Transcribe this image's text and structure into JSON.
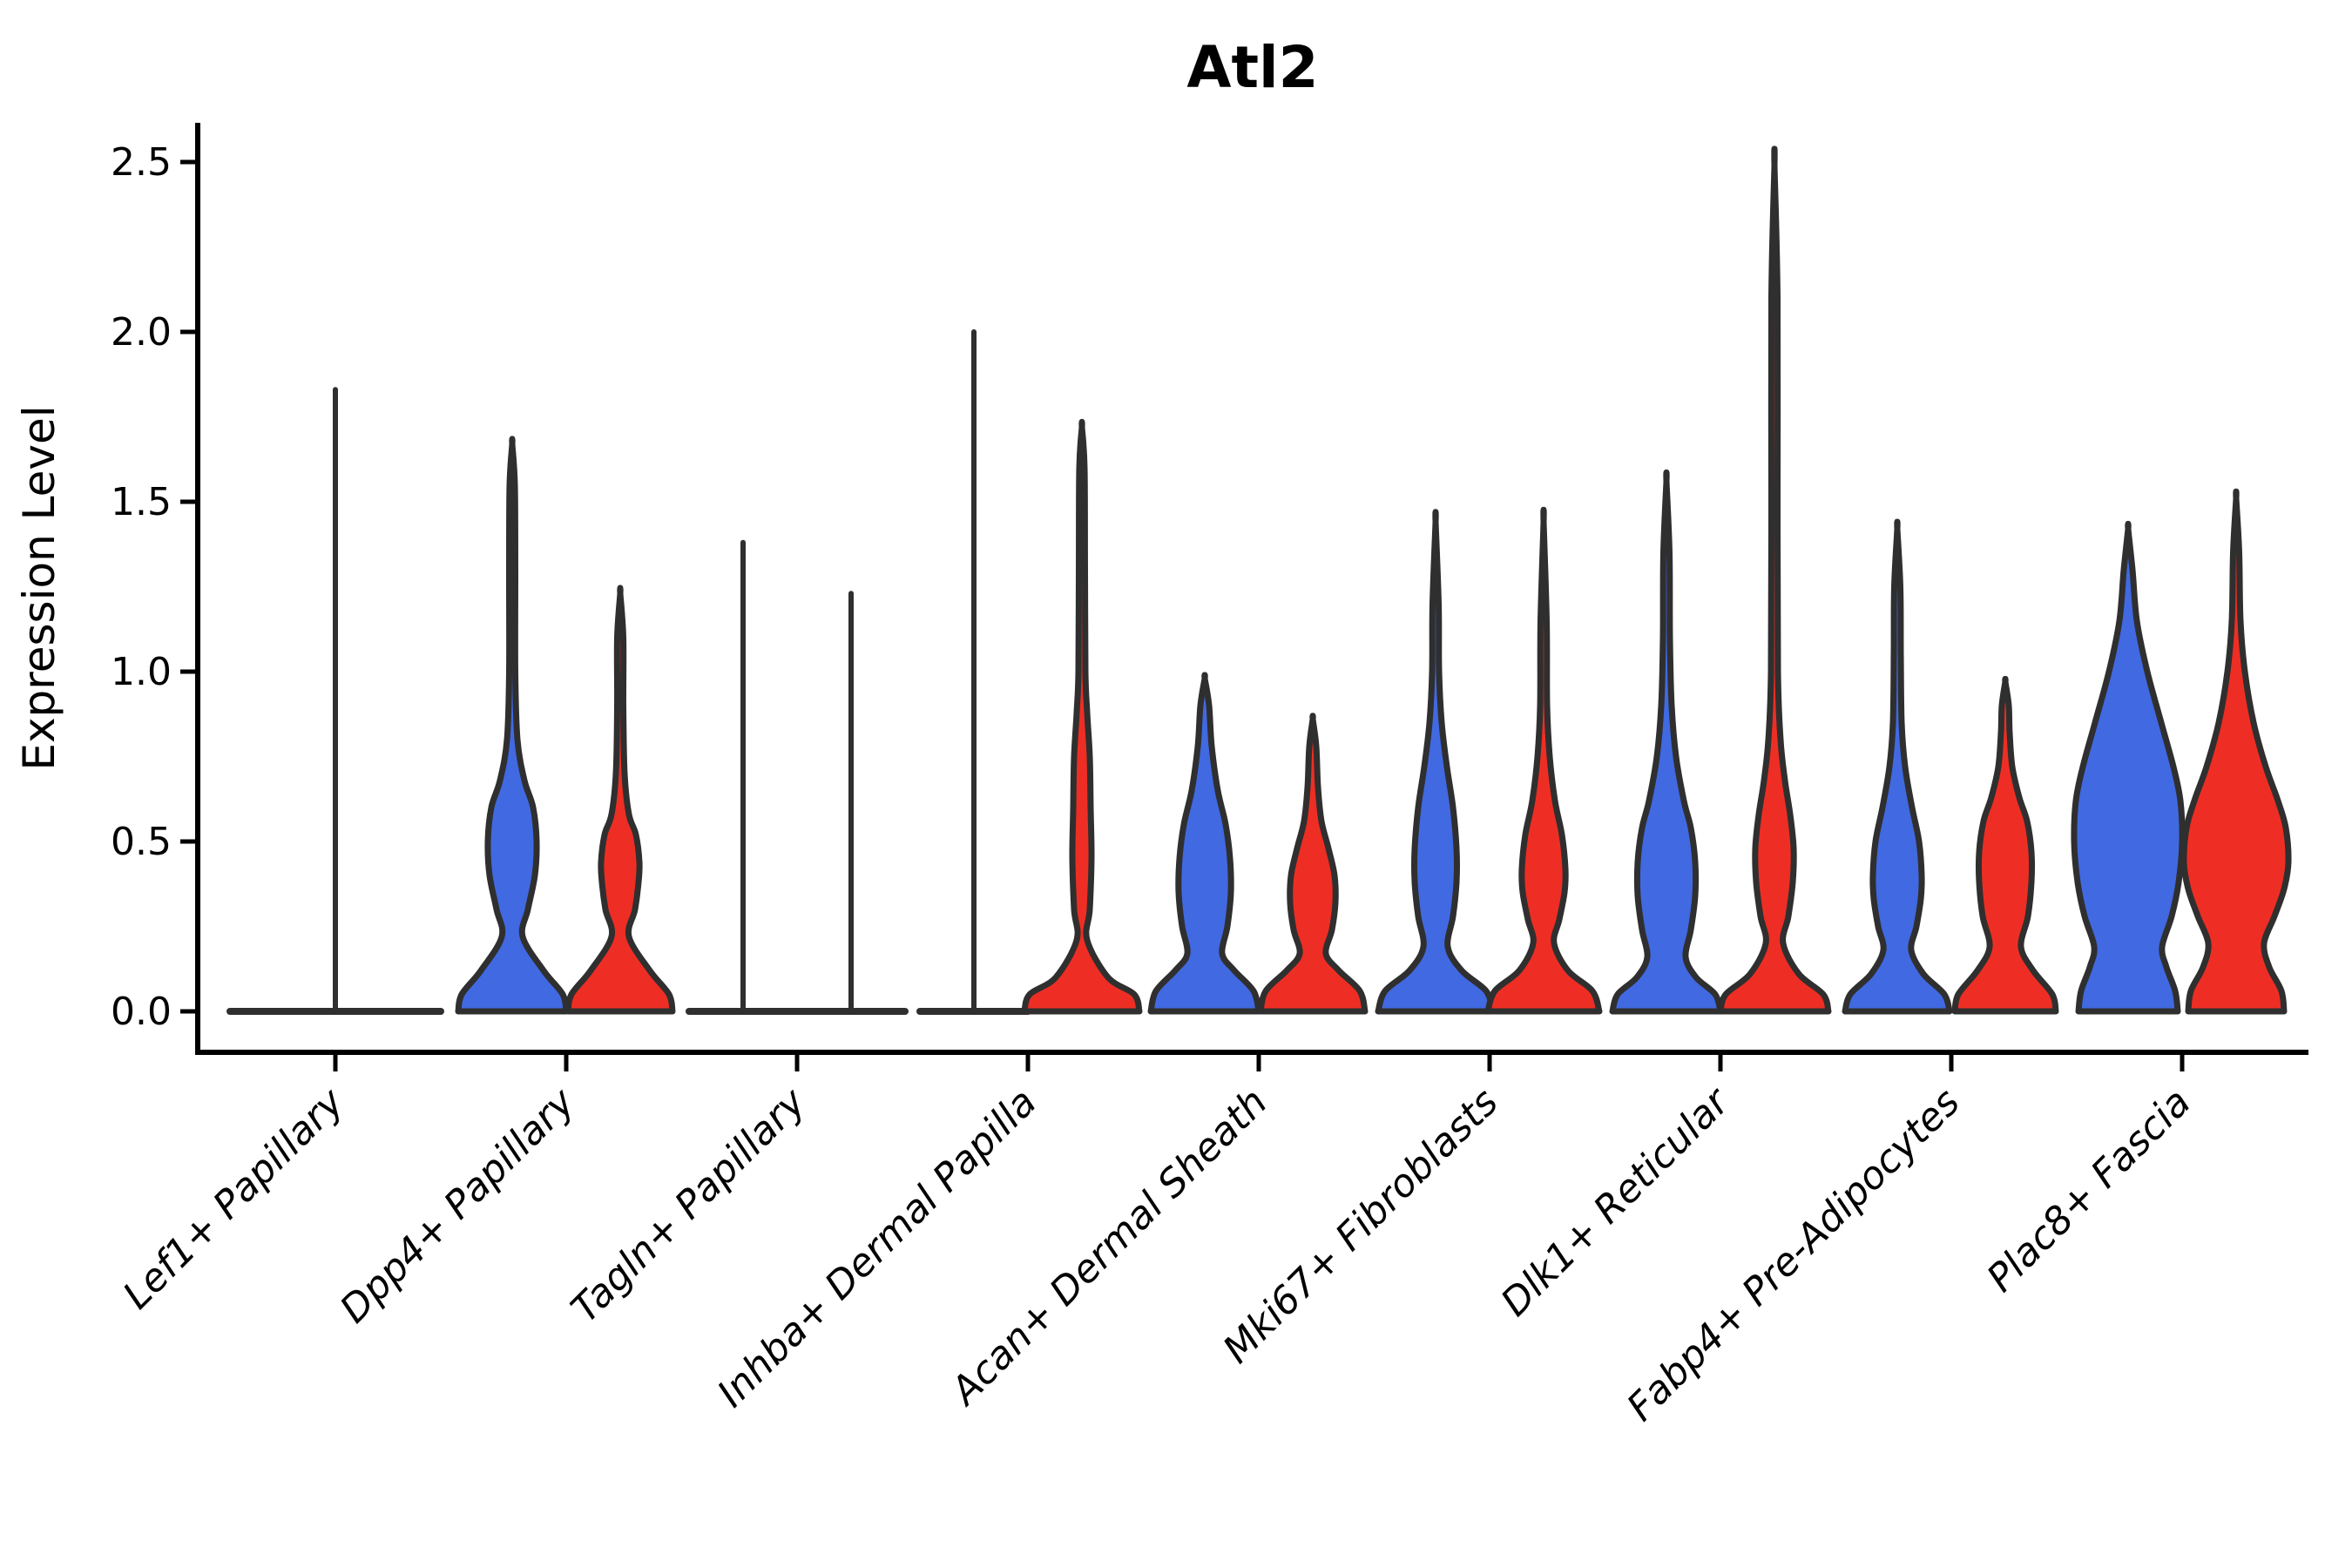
{
  "title": "Atl2",
  "y_axis": {
    "label": "Expression Level",
    "tick_labels": [
      "0.0",
      "0.5",
      "1.0",
      "1.5",
      "2.0",
      "2.5"
    ],
    "tick_values": [
      0.0,
      0.5,
      1.0,
      1.5,
      2.0,
      2.5
    ]
  },
  "colors": {
    "blue": "#4169e1",
    "red": "#ee2e24",
    "outline": "#2f2f2f",
    "axis": "#000000"
  },
  "chart_data": {
    "type": "violin",
    "title": "Atl2",
    "ylabel": "Expression Level",
    "ylim": [
      -0.12,
      2.62
    ],
    "yticks": [
      0.0,
      0.5,
      1.0,
      1.5,
      2.0,
      2.5
    ],
    "grid": false,
    "legend": "none",
    "categories": [
      "Lef1+ Papillary",
      "Dpp4+ Papillary",
      "Tagln+ Papillary",
      "Inhba+ Dermal Papilla",
      "Acan+ Dermal Sheath",
      "Mki67+ Fibroblasts",
      "Dlk1+ Reticular",
      "Fabp4+ Pre-Adipocytes",
      "Plac8+ Fascia"
    ],
    "groups": [
      {
        "category": "Lef1+ Papillary",
        "violins": [
          {
            "color": "blue",
            "flat": true,
            "full_width": true,
            "max": 1.83,
            "spike": 1.83,
            "profile": [
              [
                0,
                121
              ]
            ]
          }
        ]
      },
      {
        "category": "Dpp4+ Papillary",
        "violins": [
          {
            "color": "blue",
            "max": 1.67,
            "profile": [
              [
                0,
                62
              ],
              [
                0.05,
                58
              ],
              [
                0.12,
                36
              ],
              [
                0.22,
                12
              ],
              [
                0.3,
                18
              ],
              [
                0.4,
                26
              ],
              [
                0.5,
                28
              ],
              [
                0.6,
                24
              ],
              [
                0.68,
                14
              ],
              [
                0.8,
                6
              ],
              [
                1.0,
                3.5
              ],
              [
                1.3,
                3.5
              ],
              [
                1.55,
                3
              ],
              [
                1.67,
                0
              ]
            ]
          },
          {
            "color": "red",
            "max": 1.23,
            "profile": [
              [
                0,
                60
              ],
              [
                0.05,
                56
              ],
              [
                0.12,
                34
              ],
              [
                0.22,
                10
              ],
              [
                0.3,
                17
              ],
              [
                0.38,
                21
              ],
              [
                0.44,
                22
              ],
              [
                0.52,
                18
              ],
              [
                0.58,
                10
              ],
              [
                0.7,
                5
              ],
              [
                0.9,
                3.5
              ],
              [
                1.1,
                3.5
              ],
              [
                1.23,
                0
              ]
            ]
          }
        ]
      },
      {
        "category": "Tagln+ Papillary",
        "violins": [
          {
            "color": "blue",
            "flat": true,
            "max": 1.38,
            "spike": 1.38,
            "profile": [
              [
                0,
                62
              ]
            ]
          },
          {
            "color": "red",
            "flat": true,
            "max": 1.23,
            "spike": 1.23,
            "profile": [
              [
                0,
                62
              ]
            ]
          }
        ]
      },
      {
        "category": "Inhba+ Dermal Papilla",
        "violins": [
          {
            "color": "blue",
            "flat": true,
            "max": 2.0,
            "spike": 2.0,
            "profile": [
              [
                0,
                62
              ]
            ]
          },
          {
            "color": "red",
            "max": 1.72,
            "profile": [
              [
                0,
                66
              ],
              [
                0.05,
                60
              ],
              [
                0.1,
                30
              ],
              [
                0.21,
                6
              ],
              [
                0.3,
                9
              ],
              [
                0.45,
                11
              ],
              [
                0.6,
                10
              ],
              [
                0.75,
                9
              ],
              [
                0.88,
                6
              ],
              [
                1.0,
                4
              ],
              [
                1.3,
                3.5
              ],
              [
                1.6,
                3
              ],
              [
                1.72,
                0
              ]
            ]
          }
        ]
      },
      {
        "category": "Acan+ Dermal Sheath",
        "violins": [
          {
            "color": "blue",
            "max": 0.98,
            "profile": [
              [
                0,
                62
              ],
              [
                0.06,
                56
              ],
              [
                0.12,
                34
              ],
              [
                0.17,
                20
              ],
              [
                0.25,
                26
              ],
              [
                0.35,
                30
              ],
              [
                0.45,
                29
              ],
              [
                0.55,
                24
              ],
              [
                0.65,
                15
              ],
              [
                0.78,
                8
              ],
              [
                0.9,
                5
              ],
              [
                0.98,
                0
              ]
            ]
          },
          {
            "color": "red",
            "max": 0.86,
            "profile": [
              [
                0,
                60
              ],
              [
                0.06,
                54
              ],
              [
                0.12,
                30
              ],
              [
                0.17,
                15
              ],
              [
                0.24,
                22
              ],
              [
                0.32,
                26
              ],
              [
                0.4,
                25
              ],
              [
                0.48,
                18
              ],
              [
                0.56,
                10
              ],
              [
                0.66,
                6
              ],
              [
                0.78,
                4
              ],
              [
                0.86,
                0
              ]
            ]
          }
        ]
      },
      {
        "category": "Mki67+ Fibroblasts",
        "violins": [
          {
            "color": "blue",
            "max": 1.44,
            "profile": [
              [
                0,
                66
              ],
              [
                0.06,
                58
              ],
              [
                0.12,
                30
              ],
              [
                0.19,
                14
              ],
              [
                0.28,
                20
              ],
              [
                0.38,
                24
              ],
              [
                0.48,
                24
              ],
              [
                0.6,
                20
              ],
              [
                0.72,
                13
              ],
              [
                0.85,
                7
              ],
              [
                1.0,
                4
              ],
              [
                1.2,
                3.5
              ],
              [
                1.44,
                0
              ]
            ]
          },
          {
            "color": "red",
            "max": 1.44,
            "profile": [
              [
                0,
                64
              ],
              [
                0.06,
                56
              ],
              [
                0.12,
                28
              ],
              [
                0.2,
                12
              ],
              [
                0.27,
                18
              ],
              [
                0.35,
                24
              ],
              [
                0.42,
                25
              ],
              [
                0.52,
                21
              ],
              [
                0.62,
                13
              ],
              [
                0.75,
                7
              ],
              [
                0.9,
                4
              ],
              [
                1.15,
                3.5
              ],
              [
                1.44,
                0
              ]
            ]
          }
        ]
      },
      {
        "category": "Dlk1+ Reticular",
        "violins": [
          {
            "color": "blue",
            "max": 1.56,
            "profile": [
              [
                0,
                62
              ],
              [
                0.05,
                56
              ],
              [
                0.1,
                34
              ],
              [
                0.16,
                22
              ],
              [
                0.24,
                28
              ],
              [
                0.34,
                33
              ],
              [
                0.44,
                33
              ],
              [
                0.54,
                28
              ],
              [
                0.62,
                20
              ],
              [
                0.75,
                11
              ],
              [
                0.9,
                6
              ],
              [
                1.1,
                4
              ],
              [
                1.35,
                3.5
              ],
              [
                1.56,
                0
              ]
            ]
          },
          {
            "color": "red",
            "max": 2.49,
            "profile": [
              [
                0,
                62
              ],
              [
                0.05,
                56
              ],
              [
                0.11,
                28
              ],
              [
                0.2,
                10
              ],
              [
                0.28,
                16
              ],
              [
                0.38,
                21
              ],
              [
                0.48,
                22
              ],
              [
                0.58,
                18
              ],
              [
                0.68,
                12
              ],
              [
                0.8,
                7
              ],
              [
                1.0,
                4
              ],
              [
                1.5,
                3.5
              ],
              [
                2.1,
                3.5
              ],
              [
                2.49,
                0
              ]
            ]
          }
        ]
      },
      {
        "category": "Fabp4+ Pre-Adipocytes",
        "violins": [
          {
            "color": "blue",
            "max": 1.42,
            "profile": [
              [
                0,
                60
              ],
              [
                0.05,
                54
              ],
              [
                0.11,
                30
              ],
              [
                0.18,
                16
              ],
              [
                0.25,
                22
              ],
              [
                0.33,
                27
              ],
              [
                0.4,
                28
              ],
              [
                0.5,
                25
              ],
              [
                0.6,
                17
              ],
              [
                0.72,
                9
              ],
              [
                0.85,
                5
              ],
              [
                1.05,
                4
              ],
              [
                1.25,
                3.5
              ],
              [
                1.42,
                0
              ]
            ]
          },
          {
            "color": "red",
            "max": 0.97,
            "profile": [
              [
                0,
                58
              ],
              [
                0.05,
                54
              ],
              [
                0.12,
                32
              ],
              [
                0.19,
                18
              ],
              [
                0.28,
                26
              ],
              [
                0.38,
                30
              ],
              [
                0.47,
                30
              ],
              [
                0.56,
                25
              ],
              [
                0.63,
                16
              ],
              [
                0.72,
                8
              ],
              [
                0.82,
                5
              ],
              [
                0.9,
                4
              ],
              [
                0.97,
                0
              ]
            ]
          }
        ]
      },
      {
        "category": "Plac8+ Fascia",
        "violins": [
          {
            "color": "blue",
            "max": 1.42,
            "profile": [
              [
                0,
                57
              ],
              [
                0.06,
                54
              ],
              [
                0.13,
                44
              ],
              [
                0.19,
                39
              ],
              [
                0.28,
                50
              ],
              [
                0.38,
                58
              ],
              [
                0.5,
                62
              ],
              [
                0.62,
                60
              ],
              [
                0.72,
                52
              ],
              [
                0.85,
                38
              ],
              [
                1.0,
                22
              ],
              [
                1.15,
                10
              ],
              [
                1.3,
                5
              ],
              [
                1.42,
                0
              ]
            ]
          },
          {
            "color": "red",
            "max": 1.51,
            "profile": [
              [
                0,
                55
              ],
              [
                0.06,
                52
              ],
              [
                0.13,
                38
              ],
              [
                0.2,
                32
              ],
              [
                0.28,
                44
              ],
              [
                0.36,
                55
              ],
              [
                0.44,
                60
              ],
              [
                0.54,
                57
              ],
              [
                0.62,
                48
              ],
              [
                0.72,
                34
              ],
              [
                0.85,
                20
              ],
              [
                1.0,
                10
              ],
              [
                1.15,
                5
              ],
              [
                1.35,
                3.5
              ],
              [
                1.51,
                0
              ]
            ]
          }
        ]
      }
    ]
  }
}
